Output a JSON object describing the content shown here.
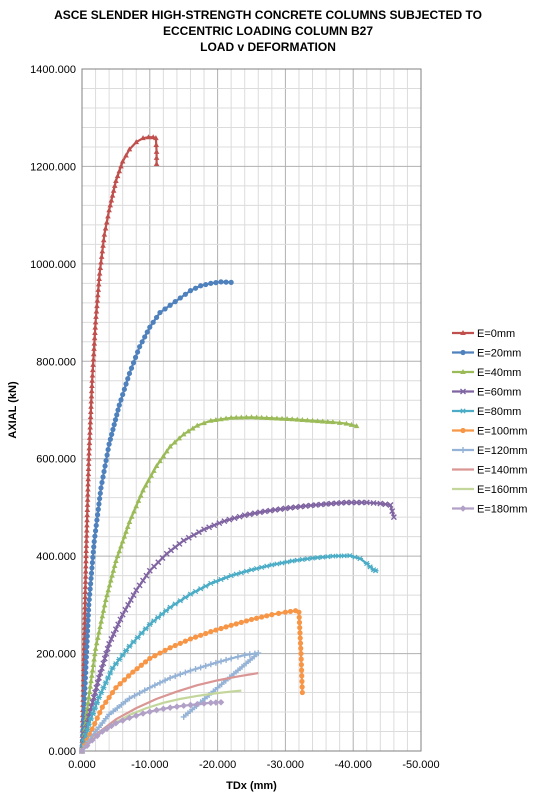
{
  "chart_data": {
    "type": "line",
    "title_lines": [
      "ASCE SLENDER HIGH-STRENGTH CONCRETE COLUMNS SUBJECTED TO",
      "ECCENTRIC LOADING COLUMN B27",
      "LOAD v DEFORMATION"
    ],
    "xlabel": "TDx (mm)",
    "ylabel": "AXIAL (kN)",
    "xlim": [
      0,
      -50
    ],
    "ylim": [
      0,
      1400
    ],
    "x_ticks": [
      "0.000",
      "-10.000",
      "-20.000",
      "-30.000",
      "-40.000",
      "-50.000"
    ],
    "y_ticks": [
      "0.000",
      "200.000",
      "400.000",
      "600.000",
      "800.000",
      "1000.000",
      "1200.000",
      "1400.000"
    ],
    "grid": "major and minor",
    "legend_position": "right",
    "series": [
      {
        "name": "E=0mm",
        "color": "#c0504d",
        "marker": "triangle",
        "x": [
          0,
          -0.3,
          -0.6,
          -1.0,
          -1.5,
          -2.0,
          -2.6,
          -3.3,
          -4.0,
          -5.0,
          -6.0,
          -7.0,
          -8.0,
          -9.0,
          -9.8,
          -10.5,
          -10.9,
          -11.0,
          -11.0
        ],
        "y": [
          0,
          200,
          400,
          600,
          760,
          880,
          980,
          1060,
          1110,
          1170,
          1210,
          1235,
          1250,
          1258,
          1260,
          1260,
          1258,
          1230,
          1205
        ]
      },
      {
        "name": "E=20mm",
        "color": "#4f81bd",
        "marker": "circle",
        "x": [
          0,
          -0.5,
          -1.0,
          -1.8,
          -2.8,
          -4.0,
          -5.5,
          -7.0,
          -8.5,
          -10.0,
          -11.5,
          -13.0,
          -14.5,
          -16.0,
          -17.5,
          -19.0,
          -20.5,
          -22.0
        ],
        "y": [
          0,
          150,
          300,
          430,
          540,
          630,
          710,
          775,
          830,
          870,
          900,
          915,
          930,
          945,
          955,
          960,
          963,
          962
        ]
      },
      {
        "name": "E=40mm",
        "color": "#9bbb59",
        "marker": "triangle",
        "x": [
          0,
          -1.0,
          -2.0,
          -3.5,
          -5.0,
          -7.0,
          -9.0,
          -11.0,
          -13.0,
          -15.0,
          -17.0,
          -19.0,
          -22.0,
          -25.0,
          -28.0,
          -31.0,
          -34.0,
          -37.0,
          -39.0,
          -40.5
        ],
        "y": [
          0,
          110,
          210,
          310,
          390,
          470,
          535,
          585,
          625,
          650,
          668,
          678,
          684,
          685,
          683,
          681,
          678,
          675,
          672,
          667
        ]
      },
      {
        "name": "E=60mm",
        "color": "#8064a2",
        "marker": "x",
        "x": [
          0,
          -1.0,
          -2.5,
          -4.0,
          -6.0,
          -8.0,
          -10.0,
          -12.5,
          -15.0,
          -18.0,
          -21.0,
          -24.0,
          -27.0,
          -30.0,
          -33.0,
          -36.0,
          -39.0,
          -42.0,
          -44.0,
          -45.5,
          -46.0
        ],
        "y": [
          0,
          70,
          150,
          220,
          280,
          330,
          370,
          405,
          432,
          455,
          472,
          484,
          492,
          498,
          503,
          507,
          510,
          510,
          508,
          505,
          480
        ]
      },
      {
        "name": "E=80mm",
        "color": "#4bacc6",
        "marker": "star",
        "x": [
          0,
          -1.0,
          -2.5,
          -4.5,
          -7.0,
          -10.0,
          -13.0,
          -16.0,
          -19.0,
          -22.0,
          -25.0,
          -28.0,
          -31.0,
          -34.0,
          -37.0,
          -39.5,
          -41.0,
          -42.0,
          -42.5,
          -43.0,
          -43.3
        ],
        "y": [
          0,
          55,
          110,
          170,
          215,
          260,
          295,
          322,
          344,
          360,
          372,
          382,
          390,
          396,
          400,
          401,
          395,
          385,
          378,
          372,
          370
        ]
      },
      {
        "name": "E=100mm",
        "color": "#f79646",
        "marker": "circle",
        "x": [
          0,
          -1.5,
          -3.0,
          -5.0,
          -7.5,
          -10.0,
          -13.0,
          -16.0,
          -19.0,
          -22.0,
          -25.0,
          -28.0,
          -30.0,
          -31.5,
          -32.0,
          -32.3,
          -32.5
        ],
        "y": [
          0,
          45,
          90,
          130,
          162,
          190,
          212,
          230,
          245,
          258,
          270,
          280,
          285,
          288,
          285,
          200,
          120
        ]
      },
      {
        "name": "E=120mm",
        "color": "#95b3d7",
        "marker": "plus",
        "x": [
          0,
          -2.0,
          -4.0,
          -7.0,
          -10.0,
          -13.0,
          -16.0,
          -19.0,
          -22.0,
          -24.0,
          -25.5,
          -26.0,
          -20.0,
          -15.0
        ],
        "y": [
          0,
          40,
          75,
          108,
          130,
          150,
          165,
          178,
          190,
          197,
          200,
          201,
          130,
          70
        ]
      },
      {
        "name": "E=140mm",
        "color": "#d99694",
        "marker": "none",
        "x": [
          0,
          -2.0,
          -5.0,
          -8.0,
          -11.0,
          -14.0,
          -17.0,
          -20.0,
          -23.0,
          -26.0
        ],
        "y": [
          0,
          33,
          65,
          88,
          107,
          122,
          135,
          145,
          153,
          160
        ]
      },
      {
        "name": "E=160mm",
        "color": "#c3d69b",
        "marker": "none",
        "x": [
          0,
          -2.0,
          -4.5,
          -7.0,
          -9.5,
          -12.0,
          -14.5,
          -17.0,
          -19.5,
          -22.0,
          -23.5
        ],
        "y": [
          0,
          30,
          55,
          74,
          88,
          99,
          107,
          113,
          118,
          122,
          124
        ]
      },
      {
        "name": "E=180mm",
        "color": "#b2a1c7",
        "marker": "diamond",
        "x": [
          0,
          -1.5,
          -3.0,
          -5.0,
          -7.0,
          -9.0,
          -11.0,
          -13.0,
          -15.0,
          -17.0,
          -19.0,
          -20.5
        ],
        "y": [
          0,
          22,
          40,
          57,
          68,
          77,
          84,
          89,
          93,
          96,
          99,
          100
        ]
      }
    ]
  }
}
